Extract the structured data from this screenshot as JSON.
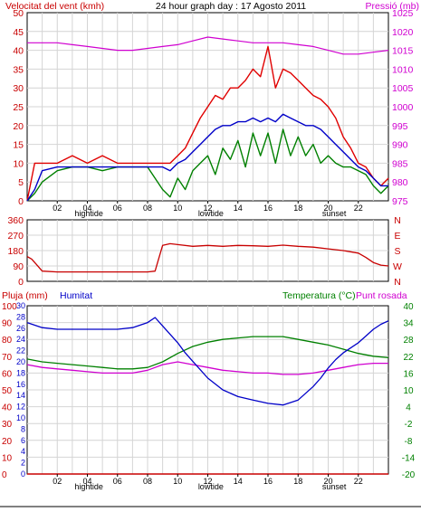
{
  "header": {
    "title": "24 hour graph day : 17 Agosto 2011"
  },
  "colors": {
    "wind_avg": "#0000c8",
    "wind_gust": "#e00000",
    "wind_min": "#008000",
    "pressure": "#d000d0",
    "direction": "#c80000",
    "humidity": "#0000c8",
    "temperature": "#008000",
    "dewpoint": "#d000d0",
    "rain": "#c80000",
    "grid": "#d4d4d4",
    "axis": "#000000"
  },
  "markers": {
    "hightide": "hightide",
    "lowtide": "lowtide",
    "sunset": "sunset"
  },
  "chart_data": [
    {
      "type": "line",
      "name": "wind-pressure-panel",
      "title": "24 hour graph day : 17 Agosto 2011",
      "ylabel": "Velocitat del vent (kmh)",
      "ylabel_right": "Pressió (mb)",
      "ylim": [
        0,
        50
      ],
      "ylim_right": [
        975,
        1025
      ],
      "y_ticks": [
        0,
        5,
        10,
        15,
        20,
        25,
        30,
        35,
        40,
        45,
        50
      ],
      "y_ticks_right": [
        975,
        980,
        985,
        990,
        995,
        1000,
        1005,
        1010,
        1015,
        1020,
        1025
      ],
      "x_ticks": [
        "02",
        "04",
        "06",
        "08",
        "10",
        "12",
        "14",
        "16",
        "18",
        "20",
        "22"
      ],
      "xlim": [
        0,
        24
      ],
      "grid": true,
      "series": [
        {
          "key": "gust",
          "axis": "left",
          "x": [
            0,
            0.5,
            1,
            2,
            3,
            4,
            5,
            6,
            7,
            8,
            9,
            9.5,
            10,
            10.5,
            11,
            11.5,
            12,
            12.5,
            13,
            13.5,
            14,
            14.5,
            15,
            15.5,
            16,
            16.5,
            17,
            17.5,
            18,
            18.5,
            19,
            19.5,
            20,
            20.5,
            21,
            21.5,
            22,
            22.5,
            23,
            23.5,
            24
          ],
          "values": [
            0,
            10,
            10,
            10,
            12,
            10,
            12,
            10,
            10,
            10,
            10,
            10,
            12,
            14,
            18,
            22,
            25,
            28,
            27,
            30,
            30,
            32,
            35,
            33,
            41,
            30,
            35,
            34,
            32,
            30,
            28,
            27,
            25,
            22,
            17,
            14,
            10,
            9,
            6,
            4,
            6
          ]
        },
        {
          "key": "avg",
          "axis": "left",
          "x": [
            0,
            0.5,
            1,
            2,
            3,
            4,
            5,
            6,
            7,
            8,
            9,
            9.5,
            10,
            10.5,
            11,
            11.5,
            12,
            12.5,
            13,
            13.5,
            14,
            14.5,
            15,
            15.5,
            16,
            16.5,
            17,
            17.5,
            18,
            18.5,
            19,
            19.5,
            20,
            20.5,
            21,
            21.5,
            22,
            22.5,
            23,
            23.5,
            24
          ],
          "values": [
            0,
            3,
            8,
            9,
            9,
            9,
            9,
            9,
            9,
            9,
            9,
            8,
            10,
            11,
            13,
            15,
            17,
            19,
            20,
            20,
            21,
            21,
            22,
            21,
            22,
            21,
            23,
            22,
            21,
            20,
            20,
            19,
            17,
            15,
            13,
            11,
            9,
            8,
            6,
            4,
            4
          ]
        },
        {
          "key": "min",
          "axis": "left",
          "x": [
            0,
            0.5,
            1,
            2,
            3,
            4,
            5,
            6,
            7,
            8,
            9,
            9.5,
            10,
            10.5,
            11,
            11.5,
            12,
            12.5,
            13,
            13.5,
            14,
            14.5,
            15,
            15.5,
            16,
            16.5,
            17,
            17.5,
            18,
            18.5,
            19,
            19.5,
            20,
            20.5,
            21,
            21.5,
            22,
            22.5,
            23,
            23.5,
            24
          ],
          "values": [
            0,
            2,
            5,
            8,
            9,
            9,
            8,
            9,
            9,
            9,
            3,
            1,
            6,
            3,
            8,
            10,
            12,
            7,
            14,
            11,
            16,
            9,
            18,
            12,
            18,
            10,
            19,
            12,
            17,
            12,
            15,
            10,
            12,
            10,
            9,
            9,
            8,
            7,
            4,
            2,
            4
          ]
        },
        {
          "key": "pressure",
          "axis": "right",
          "x": [
            0,
            1,
            2,
            3,
            4,
            5,
            6,
            7,
            8,
            9,
            10,
            11,
            12,
            13,
            14,
            15,
            16,
            17,
            18,
            19,
            20,
            21,
            22,
            23,
            24
          ],
          "values": [
            1017,
            1017,
            1017,
            1016.5,
            1016,
            1015.5,
            1015,
            1015,
            1015.5,
            1016,
            1016.5,
            1017.5,
            1018.5,
            1018,
            1017.5,
            1017,
            1017,
            1017,
            1016.5,
            1016,
            1015,
            1014,
            1014,
            1014.5,
            1015
          ]
        }
      ]
    },
    {
      "type": "line",
      "name": "wind-direction-panel",
      "ylim": [
        0,
        360
      ],
      "y_ticks": [
        0,
        90,
        180,
        270,
        360
      ],
      "y_ticks_right": [
        "N",
        "W",
        "S",
        "E",
        "N"
      ],
      "xlim": [
        0,
        24
      ],
      "grid": true,
      "series": [
        {
          "key": "direction",
          "x": [
            0,
            0.3,
            0.6,
            1,
            2,
            3,
            4,
            5,
            6,
            7,
            8,
            8.5,
            8.7,
            9,
            9.5,
            10,
            11,
            12,
            13,
            14,
            15,
            16,
            17,
            18,
            19,
            20,
            21,
            22,
            22.5,
            23,
            23.5,
            24
          ],
          "values": [
            145,
            130,
            100,
            60,
            55,
            55,
            55,
            55,
            55,
            55,
            55,
            60,
            120,
            210,
            220,
            215,
            205,
            210,
            205,
            210,
            208,
            205,
            212,
            205,
            200,
            190,
            180,
            165,
            140,
            110,
            95,
            90
          ]
        }
      ]
    },
    {
      "type": "line",
      "name": "humidity-temperature-panel",
      "ylabel": "Pluja (mm)",
      "ylabel_humidity": "Humitat",
      "ylabel_right": "Temperatura (°C)",
      "ylabel_right_2": "Punt rosada",
      "ylim_humidity": [
        0,
        100
      ],
      "ylim_rain": [
        0,
        30
      ],
      "ylim_right": [
        -20,
        40
      ],
      "y_ticks_humidity": [
        0,
        10,
        20,
        30,
        40,
        50,
        60,
        70,
        80,
        90,
        100
      ],
      "y_ticks_rain": [
        0,
        2,
        4,
        6,
        8,
        10,
        12,
        14,
        16,
        18,
        20,
        22,
        24,
        26,
        28,
        30
      ],
      "y_ticks_right": [
        -20,
        -14,
        -8,
        -2,
        4,
        10,
        16,
        22,
        28,
        34,
        40
      ],
      "x_ticks": [
        "02",
        "04",
        "06",
        "08",
        "10",
        "12",
        "14",
        "16",
        "18",
        "20",
        "22"
      ],
      "xlim": [
        0,
        24
      ],
      "grid": true,
      "series": [
        {
          "key": "humidity",
          "x": [
            0,
            1,
            2,
            3,
            4,
            5,
            6,
            7,
            8,
            8.5,
            9,
            9.5,
            10,
            10.5,
            11,
            11.5,
            12,
            13,
            14,
            15,
            16,
            17,
            18,
            19,
            19.5,
            20,
            20.5,
            21,
            22,
            22.5,
            23,
            23.5,
            24
          ],
          "values": [
            90,
            87,
            86,
            86,
            86,
            86,
            86,
            87,
            90,
            93,
            88,
            83,
            78,
            72,
            67,
            62,
            57,
            50,
            46,
            44,
            42,
            41,
            44,
            52,
            57,
            63,
            68,
            72,
            78,
            82,
            86,
            89,
            91
          ]
        },
        {
          "key": "temperature",
          "x": [
            0,
            1,
            2,
            3,
            4,
            5,
            6,
            7,
            8,
            9,
            10,
            11,
            12,
            13,
            14,
            15,
            16,
            17,
            18,
            19,
            20,
            21,
            22,
            23,
            24
          ],
          "values": [
            21,
            20,
            19.5,
            19,
            18.5,
            18,
            17.5,
            17.5,
            18,
            20,
            23,
            25.5,
            27,
            28,
            28.5,
            29,
            29,
            29,
            28,
            27,
            26,
            24.5,
            23,
            22,
            21.5
          ]
        },
        {
          "key": "dewpoint",
          "x": [
            0,
            1,
            2,
            3,
            4,
            5,
            6,
            7,
            8,
            9,
            10,
            11,
            12,
            13,
            14,
            15,
            16,
            17,
            18,
            19,
            20,
            21,
            22,
            23,
            24
          ],
          "values": [
            19,
            18,
            17.5,
            17,
            16.5,
            16,
            16,
            16,
            17,
            19,
            20,
            19,
            18,
            17,
            16.5,
            16,
            16,
            15.5,
            15.5,
            16,
            17,
            18,
            19,
            19.5,
            19.5
          ]
        },
        {
          "key": "rain",
          "x": [
            0,
            24
          ],
          "values": [
            0,
            0
          ]
        }
      ]
    }
  ]
}
